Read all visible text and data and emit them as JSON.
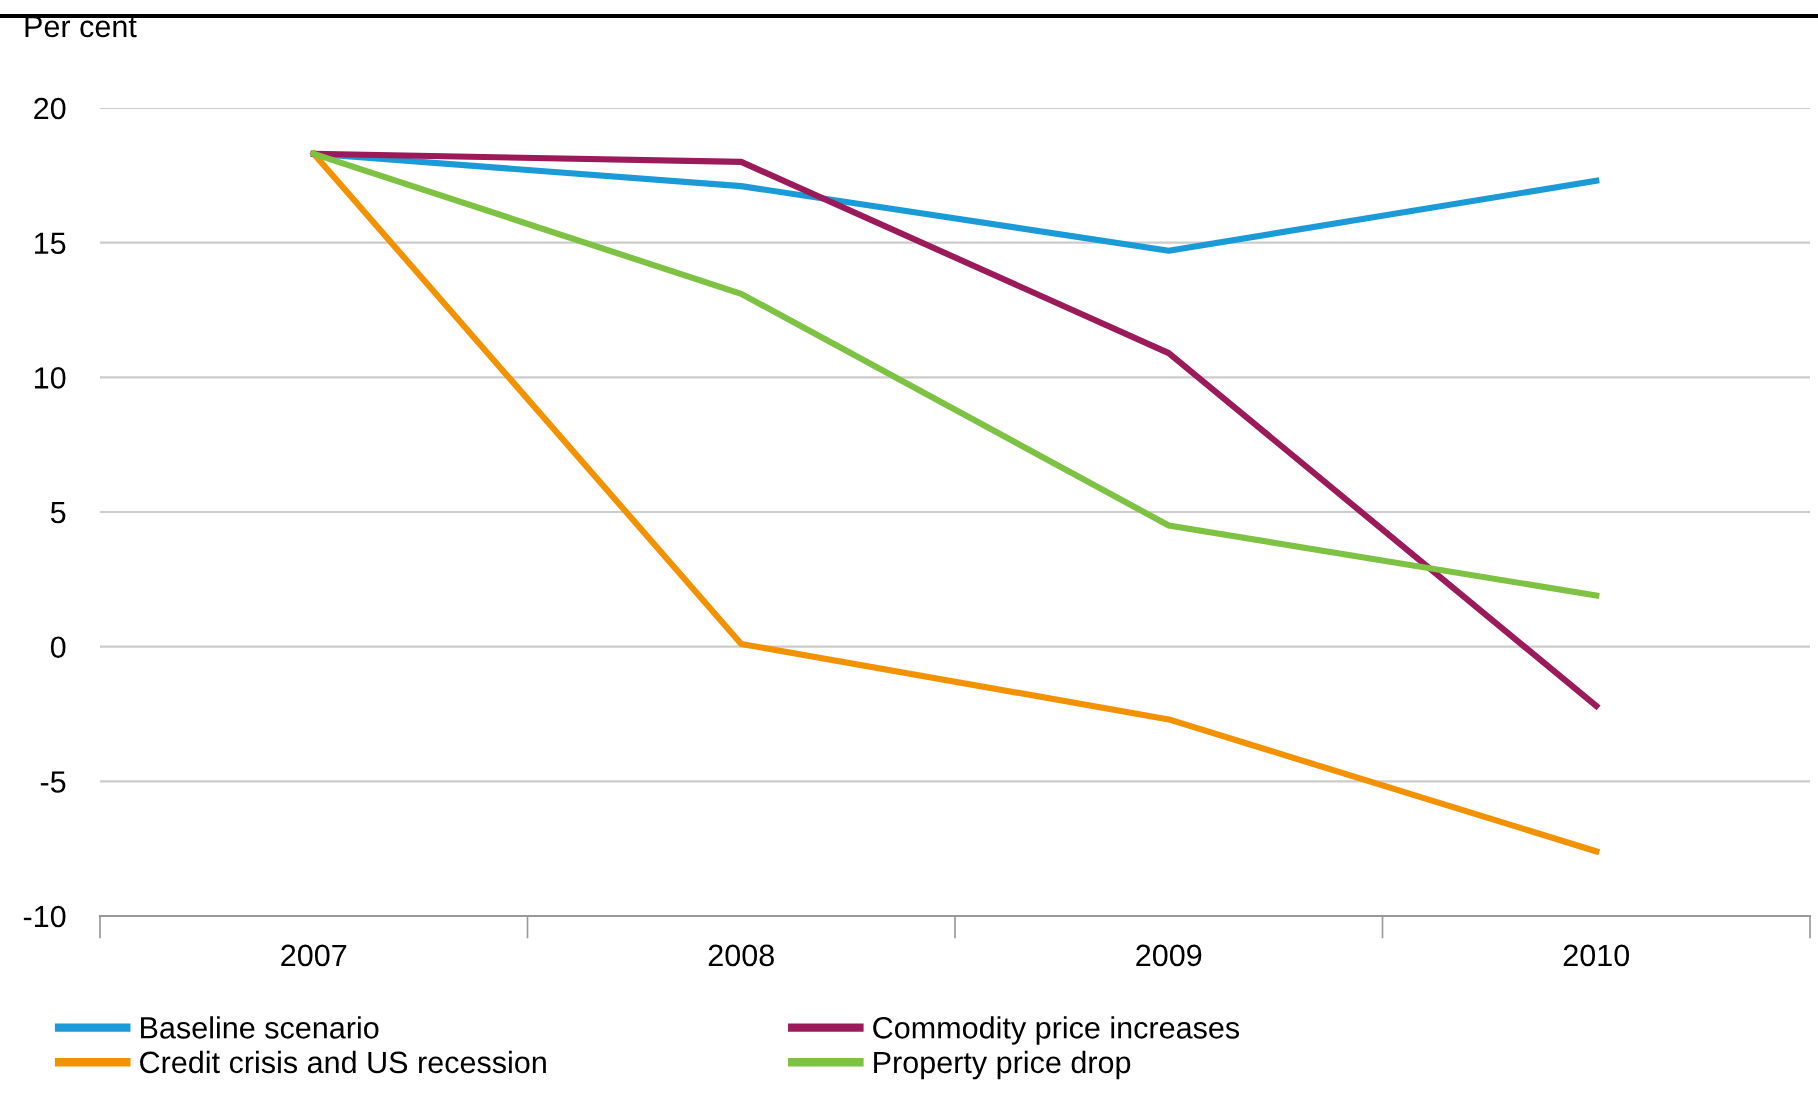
{
  "chart_data": {
    "type": "line",
    "ylabel": "Per cent",
    "categories": [
      "2007",
      "2008",
      "2009",
      "2010"
    ],
    "series": [
      {
        "name": "Baseline scenario",
        "color": "#1a9ad6",
        "values": [
          18.3,
          17.1,
          14.7,
          17.3
        ]
      },
      {
        "name": "Credit crisis and US recession",
        "color": "#f39200",
        "values": [
          18.3,
          0.1,
          -2.7,
          -7.6
        ]
      },
      {
        "name": "Commodity price increases",
        "color": "#9b1b5a",
        "values": [
          18.3,
          18.0,
          10.9,
          -2.2
        ]
      },
      {
        "name": "Property price drop",
        "color": "#7dc242",
        "values": [
          18.3,
          13.1,
          4.5,
          1.9
        ]
      }
    ],
    "ylim": [
      -10,
      20
    ],
    "yticks": [
      -10,
      -5,
      0,
      5,
      10,
      15,
      20
    ],
    "grid": "y",
    "legend": "bottom",
    "marker": "none",
    "line_style": "solid"
  }
}
